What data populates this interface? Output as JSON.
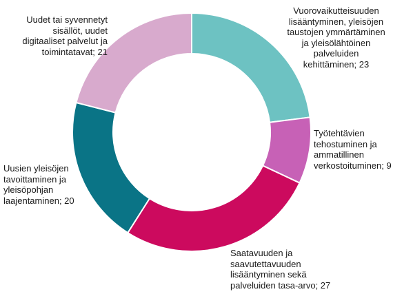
{
  "chart_data": {
    "type": "pie",
    "donut": true,
    "start_angle_deg": 0,
    "direction": "clockwise",
    "title": "",
    "slices": [
      {
        "label_lines": [
          "Vuorovaikutteisuuden",
          "lisääntyminen, yleisöjen",
          "taustojen ymmärtäminen",
          "ja yleisölähtöinen",
          "palveluiden",
          "kehittäminen; 23"
        ],
        "value": 23,
        "color": "#6dc2c2"
      },
      {
        "label_lines": [
          "Työtehtävien",
          "tehostuminen ja",
          "ammatillinen",
          "verkostoituminen; 9"
        ],
        "value": 9,
        "color": "#c761b6"
      },
      {
        "label_lines": [
          "Saatavuuden ja",
          "saavutettavuuden",
          "lisääntyminen sekä",
          "palveluiden tasa-arvo; 27"
        ],
        "value": 27,
        "color": "#cc0a5e"
      },
      {
        "label_lines": [
          "Uusien yleisöjen",
          "tavoittaminen ja",
          "yleisöpohjan",
          "laajentaminen; 20"
        ],
        "value": 20,
        "color": "#0a7486"
      },
      {
        "label_lines": [
          "Uudet tai syvennetyt",
          "sisällöt, uudet",
          "digitaaliset palvelut ja",
          "toimintatavat; 21"
        ],
        "value": 21,
        "color": "#d8aacd"
      }
    ]
  }
}
